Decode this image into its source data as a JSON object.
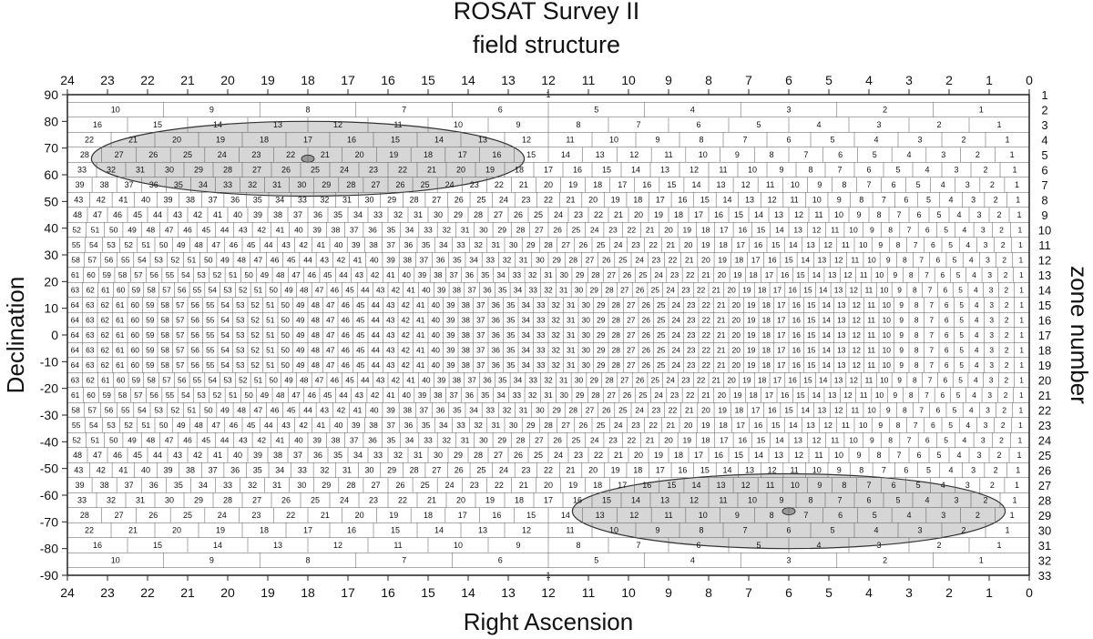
{
  "title": "ROSAT Survey II",
  "subtitle": "field structure",
  "colors": {
    "grid": "#555555",
    "ellipse_fill": "#d6d6d6",
    "ellipse_stroke": "#333333",
    "text": "#111111"
  },
  "chart_data": {
    "type": "table",
    "title": "ROSAT Survey II",
    "subtitle": "field structure",
    "xlabel": "Right Ascension",
    "ylabel": "Declination",
    "y2label": "zone number",
    "xlim": [
      24,
      0
    ],
    "ylim": [
      -90,
      90
    ],
    "x_ticks": [
      24,
      23,
      22,
      21,
      20,
      19,
      18,
      17,
      16,
      15,
      14,
      13,
      12,
      11,
      10,
      9,
      8,
      7,
      6,
      5,
      4,
      3,
      2,
      1,
      0
    ],
    "y_ticks": [
      90,
      80,
      70,
      60,
      50,
      40,
      30,
      20,
      10,
      0,
      -10,
      -20,
      -30,
      -40,
      -50,
      -60,
      -70,
      -80,
      -90
    ],
    "zones": [
      {
        "zone": 1,
        "fields": 1
      },
      {
        "zone": 2,
        "fields": 10
      },
      {
        "zone": 3,
        "fields": 16
      },
      {
        "zone": 4,
        "fields": 22
      },
      {
        "zone": 5,
        "fields": 28
      },
      {
        "zone": 6,
        "fields": 33
      },
      {
        "zone": 7,
        "fields": 39
      },
      {
        "zone": 8,
        "fields": 43
      },
      {
        "zone": 9,
        "fields": 48
      },
      {
        "zone": 10,
        "fields": 52
      },
      {
        "zone": 11,
        "fields": 55
      },
      {
        "zone": 12,
        "fields": 58
      },
      {
        "zone": 13,
        "fields": 61
      },
      {
        "zone": 14,
        "fields": 63
      },
      {
        "zone": 15,
        "fields": 64
      },
      {
        "zone": 16,
        "fields": 64
      },
      {
        "zone": 17,
        "fields": 64
      },
      {
        "zone": 18,
        "fields": 64
      },
      {
        "zone": 19,
        "fields": 64
      },
      {
        "zone": 20,
        "fields": 63
      },
      {
        "zone": 21,
        "fields": 61
      },
      {
        "zone": 22,
        "fields": 58
      },
      {
        "zone": 23,
        "fields": 55
      },
      {
        "zone": 24,
        "fields": 52
      },
      {
        "zone": 25,
        "fields": 48
      },
      {
        "zone": 26,
        "fields": 43
      },
      {
        "zone": 27,
        "fields": 39
      },
      {
        "zone": 28,
        "fields": 33
      },
      {
        "zone": 29,
        "fields": 28
      },
      {
        "zone": 30,
        "fields": 22
      },
      {
        "zone": 31,
        "fields": 16
      },
      {
        "zone": 32,
        "fields": 10
      },
      {
        "zone": 33,
        "fields": 1
      }
    ],
    "highlight_regions": [
      {
        "center_ra": 18,
        "center_dec": 66,
        "ra_halfwidth": 5.4,
        "dec_halfwidth": 14
      },
      {
        "center_ra": 6,
        "center_dec": -66,
        "ra_halfwidth": 5.4,
        "dec_halfwidth": 14
      }
    ],
    "grid": true
  }
}
